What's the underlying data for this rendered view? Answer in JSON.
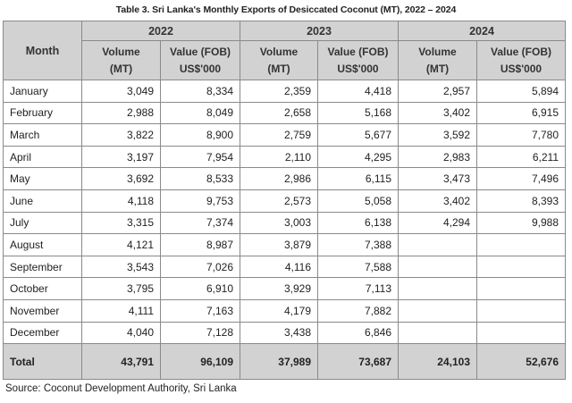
{
  "title": "Table 3. Sri Lanka's Monthly Exports of Desiccated Coconut (MT), 2022 – 2024",
  "header": {
    "month_label": "Month",
    "years": [
      "2022",
      "2023",
      "2024"
    ],
    "volume_line1": "Volume",
    "volume_line2": "(MT)",
    "value_line1": "Value (FOB)",
    "value_line2": "US$'000"
  },
  "rows": [
    {
      "month": "January",
      "v2022": "3,049",
      "f2022": "8,334",
      "v2023": "2,359",
      "f2023": "4,418",
      "v2024": "2,957",
      "f2024": "5,894"
    },
    {
      "month": "February",
      "v2022": "2,988",
      "f2022": "8,049",
      "v2023": "2,658",
      "f2023": "5,168",
      "v2024": "3,402",
      "f2024": "6,915"
    },
    {
      "month": "March",
      "v2022": "3,822",
      "f2022": "8,900",
      "v2023": "2,759",
      "f2023": "5,677",
      "v2024": "3,592",
      "f2024": "7,780"
    },
    {
      "month": "April",
      "v2022": "3,197",
      "f2022": "7,954",
      "v2023": "2,110",
      "f2023": "4,295",
      "v2024": "2,983",
      "f2024": "6,211"
    },
    {
      "month": "May",
      "v2022": "3,692",
      "f2022": "8,533",
      "v2023": "2,986",
      "f2023": "6,115",
      "v2024": "3,473",
      "f2024": "7,496"
    },
    {
      "month": "June",
      "v2022": "4,118",
      "f2022": "9,753",
      "v2023": "2,573",
      "f2023": "5,058",
      "v2024": "3,402",
      "f2024": "8,393"
    },
    {
      "month": "July",
      "v2022": "3,315",
      "f2022": "7,374",
      "v2023": "3,003",
      "f2023": "6,138",
      "v2024": "4,294",
      "f2024": "9,988"
    },
    {
      "month": "August",
      "v2022": "4,121",
      "f2022": "8,987",
      "v2023": "3,879",
      "f2023": "7,388",
      "v2024": "",
      "f2024": ""
    },
    {
      "month": "September",
      "v2022": "3,543",
      "f2022": "7,026",
      "v2023": "4,116",
      "f2023": "7,588",
      "v2024": "",
      "f2024": ""
    },
    {
      "month": "October",
      "v2022": "3,795",
      "f2022": "6,910",
      "v2023": "3,929",
      "f2023": "7,113",
      "v2024": "",
      "f2024": ""
    },
    {
      "month": "November",
      "v2022": "4,111",
      "f2022": "7,163",
      "v2023": "4,179",
      "f2023": "7,882",
      "v2024": "",
      "f2024": ""
    },
    {
      "month": "December",
      "v2022": "4,040",
      "f2022": "7,128",
      "v2023": "3,438",
      "f2023": "6,846",
      "v2024": "",
      "f2024": ""
    }
  ],
  "total": {
    "label": "Total",
    "v2022": "43,791",
    "f2022": "96,109",
    "v2023": "37,989",
    "f2023": "73,687",
    "v2024": "24,103",
    "f2024": "52,676"
  },
  "source": "Source: Coconut Development Authority, Sri Lanka",
  "colors": {
    "header_bg": "#d2d2d2",
    "grid_line": "#8a8a8a"
  }
}
